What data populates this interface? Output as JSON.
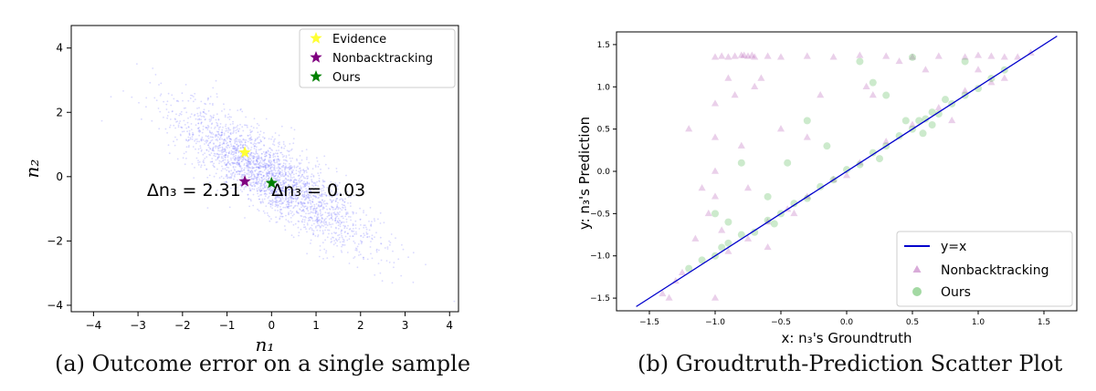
{
  "captions": {
    "a": "(a) Outcome error on a single sample",
    "b": "(b) Groudtruth-Prediction Scatter Plot"
  },
  "chart_data": [
    {
      "type": "scatter",
      "xlabel": "n₁",
      "ylabel": "n₂",
      "xlim": [
        -4.5,
        4.2
      ],
      "ylim": [
        -4.2,
        4.7
      ],
      "xticks": [
        -4,
        -3,
        -2,
        -1,
        0,
        1,
        2,
        3,
        4
      ],
      "yticks": [
        -4,
        -2,
        0,
        2,
        4
      ],
      "legend_position": "top-right",
      "cloud": {
        "center": [
          0,
          0
        ],
        "direction": "negative correlation",
        "color": "#7b7bff"
      },
      "series": [
        {
          "name": "Evidence",
          "marker": "star",
          "color": "#ffff33",
          "points": [
            [
              -0.6,
              0.75
            ]
          ]
        },
        {
          "name": "Nonbacktracking",
          "marker": "star",
          "color": "#800080",
          "points": [
            [
              -0.6,
              -0.15
            ]
          ]
        },
        {
          "name": "Ours",
          "marker": "star",
          "color": "#008000",
          "points": [
            [
              0.0,
              -0.2
            ]
          ]
        }
      ],
      "annotations": [
        {
          "text": "Δn₃ = 2.31",
          "x": -2.8,
          "y": -0.6
        },
        {
          "text": "Δn₃ = 0.03",
          "x": 0.0,
          "y": -0.6
        }
      ]
    },
    {
      "type": "scatter",
      "xlabel": "x: n₃'s Groundtruth",
      "ylabel": "y: n₃'s Prediction",
      "xlim": [
        -1.75,
        1.75
      ],
      "ylim": [
        -1.65,
        1.65
      ],
      "xticks": [
        -1.5,
        -1.0,
        -0.5,
        0.0,
        0.5,
        1.0,
        1.5
      ],
      "yticks": [
        -1.5,
        -1.0,
        -0.5,
        0.0,
        0.5,
        1.0,
        1.5
      ],
      "legend_position": "bottom-right",
      "series": [
        {
          "name": "y=x",
          "kind": "line",
          "color": "#0000cc",
          "x": [
            -1.6,
            1.6
          ],
          "y": [
            -1.6,
            1.6
          ]
        },
        {
          "name": "Nonbacktracking",
          "marker": "triangle",
          "color": "#aa44aa",
          "opacity": 0.25,
          "points": [
            [
              -1.0,
              1.35
            ],
            [
              -0.95,
              1.36
            ],
            [
              -0.9,
              1.35
            ],
            [
              -0.85,
              1.36
            ],
            [
              -0.8,
              1.37
            ],
            [
              -0.78,
              1.37
            ],
            [
              -0.75,
              1.36
            ],
            [
              -0.72,
              1.37
            ],
            [
              -0.7,
              1.35
            ],
            [
              -0.6,
              1.36
            ],
            [
              -0.5,
              1.35
            ],
            [
              -0.3,
              1.36
            ],
            [
              -0.1,
              1.35
            ],
            [
              0.1,
              1.37
            ],
            [
              0.3,
              1.36
            ],
            [
              0.5,
              1.35
            ],
            [
              0.7,
              1.36
            ],
            [
              0.9,
              1.35
            ],
            [
              1.0,
              1.37
            ],
            [
              1.1,
              1.36
            ],
            [
              1.2,
              1.35
            ],
            [
              -1.0,
              0.8
            ],
            [
              -1.0,
              0.4
            ],
            [
              -1.0,
              0.0
            ],
            [
              -1.0,
              -0.3
            ],
            [
              -1.05,
              -0.5
            ],
            [
              -0.95,
              -0.7
            ],
            [
              -1.1,
              -0.2
            ],
            [
              -1.2,
              0.5
            ],
            [
              -1.15,
              -0.8
            ],
            [
              -0.8,
              0.3
            ],
            [
              -0.75,
              -0.2
            ],
            [
              -0.7,
              1.0
            ],
            [
              -0.9,
              1.1
            ],
            [
              -0.5,
              0.5
            ],
            [
              -0.4,
              -0.5
            ],
            [
              -0.3,
              0.4
            ],
            [
              -0.6,
              -0.9
            ],
            [
              -1.3,
              -1.3
            ],
            [
              -1.4,
              -1.45
            ],
            [
              -1.25,
              -1.2
            ],
            [
              -1.35,
              -1.5
            ],
            [
              -1.0,
              -1.5
            ],
            [
              -0.2,
              0.9
            ],
            [
              0.2,
              0.9
            ],
            [
              0.6,
              1.2
            ],
            [
              0.8,
              0.6
            ],
            [
              1.2,
              1.1
            ],
            [
              1.0,
              1.2
            ],
            [
              1.1,
              1.05
            ],
            [
              0.9,
              0.95
            ],
            [
              0.0,
              -0.05
            ],
            [
              0.3,
              0.35
            ],
            [
              -0.3,
              -0.3
            ],
            [
              0.5,
              0.55
            ],
            [
              -0.6,
              -0.6
            ],
            [
              -0.9,
              -0.95
            ],
            [
              0.7,
              0.75
            ],
            [
              1.3,
              1.35
            ],
            [
              1.4,
              1.4
            ],
            [
              -0.1,
              -0.1
            ],
            [
              0.1,
              0.1
            ],
            [
              -0.45,
              -0.45
            ],
            [
              -0.75,
              -0.8
            ],
            [
              0.15,
              1.0
            ],
            [
              -0.85,
              0.9
            ],
            [
              -0.65,
              1.1
            ],
            [
              0.4,
              1.3
            ]
          ]
        },
        {
          "name": "Ours",
          "marker": "circle",
          "color": "#33aa33",
          "opacity": 0.25,
          "points": [
            [
              -1.2,
              -1.15
            ],
            [
              -1.1,
              -1.05
            ],
            [
              -1.0,
              -1.0
            ],
            [
              -0.9,
              -0.85
            ],
            [
              -0.8,
              -0.75
            ],
            [
              -0.7,
              -0.72
            ],
            [
              -0.6,
              -0.58
            ],
            [
              -0.5,
              -0.5
            ],
            [
              -0.4,
              -0.38
            ],
            [
              -0.3,
              -0.32
            ],
            [
              -0.2,
              -0.18
            ],
            [
              -0.1,
              -0.1
            ],
            [
              0.0,
              0.02
            ],
            [
              0.1,
              0.08
            ],
            [
              0.2,
              0.22
            ],
            [
              0.3,
              0.3
            ],
            [
              0.4,
              0.42
            ],
            [
              0.5,
              0.5
            ],
            [
              0.55,
              0.6
            ],
            [
              0.6,
              0.62
            ],
            [
              0.65,
              0.7
            ],
            [
              0.7,
              0.68
            ],
            [
              0.8,
              0.8
            ],
            [
              0.9,
              0.9
            ],
            [
              1.0,
              0.98
            ],
            [
              1.1,
              1.1
            ],
            [
              1.2,
              1.2
            ],
            [
              -0.9,
              -0.6
            ],
            [
              -0.6,
              -0.3
            ],
            [
              -0.3,
              0.6
            ],
            [
              0.1,
              1.3
            ],
            [
              0.5,
              1.35
            ],
            [
              -0.8,
              0.1
            ],
            [
              -1.0,
              -0.5
            ],
            [
              0.3,
              0.9
            ],
            [
              0.9,
              1.3
            ],
            [
              -0.15,
              0.3
            ],
            [
              0.65,
              0.55
            ],
            [
              0.58,
              0.45
            ],
            [
              0.45,
              0.6
            ],
            [
              -0.95,
              -0.9
            ],
            [
              -0.55,
              -0.62
            ],
            [
              0.25,
              0.15
            ],
            [
              0.75,
              0.85
            ],
            [
              -0.45,
              0.1
            ],
            [
              0.2,
              1.05
            ]
          ]
        }
      ]
    }
  ]
}
